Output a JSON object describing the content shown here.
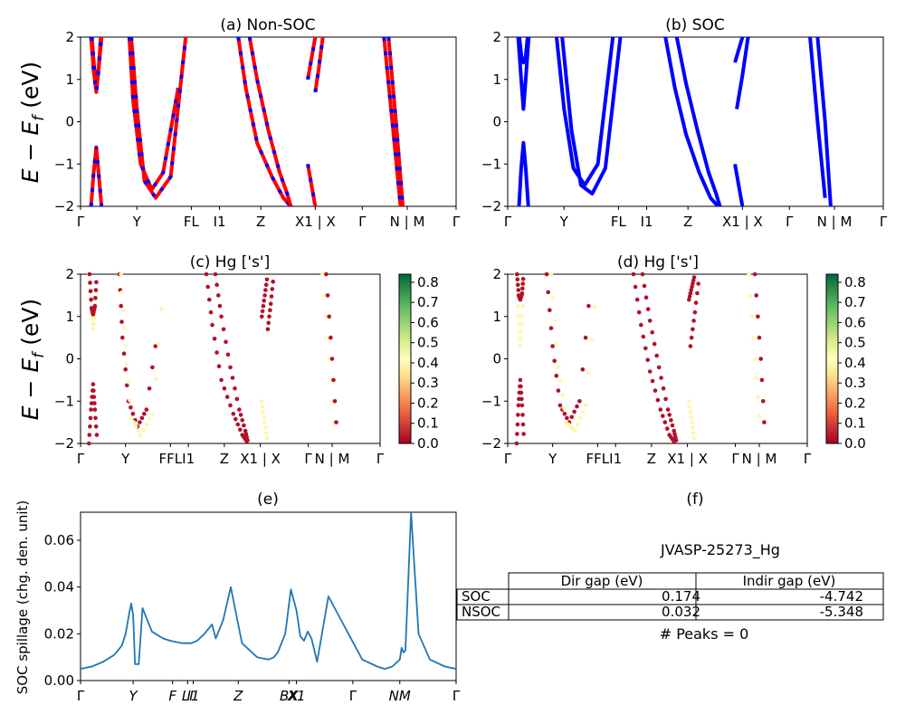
{
  "chart_data": [
    {
      "id": "a",
      "type": "line",
      "title": "(a) Non-SOC",
      "ylabel": "E − E_f (eV)",
      "ylim": [
        -2,
        2
      ],
      "yticks": [
        -2,
        -1,
        0,
        1,
        2
      ],
      "xticks": [
        "Γ",
        "Y",
        "FL",
        "I1",
        "Z",
        "X1 | X",
        "Γ",
        "N | M",
        "Γ"
      ],
      "series": [
        {
          "color": "#ff0000",
          "dashes": "#0000ff",
          "x": [
            0.28,
            0.35,
            0.42,
            0.48,
            0.56
          ],
          "y": [
            -2,
            -1.2,
            -0.6,
            -1.2,
            -2
          ]
        },
        {
          "color": "#ff0000",
          "dashes": "#0000ff",
          "x": [
            0.28,
            0.35,
            0.42,
            0.48,
            0.56
          ],
          "y": [
            2,
            1.2,
            0.7,
            1.2,
            2
          ]
        },
        {
          "color": "#ff0000",
          "dashes": "#0000ff",
          "x": [
            0.3,
            0.37,
            0.42,
            0.48,
            0.54
          ],
          "y": [
            2,
            1.2,
            1.05,
            1.25,
            2
          ]
        },
        {
          "color": "#ff0000",
          "dashes": "#0000ff",
          "x": [
            1.3,
            1.4,
            1.6,
            1.9,
            2.2,
            2.6
          ],
          "y": [
            2,
            0.5,
            -1.0,
            -1.6,
            -1.2,
            0.8
          ]
        },
        {
          "color": "#ff0000",
          "dashes": "#0000ff",
          "x": [
            1.35,
            1.5,
            1.7,
            2.0,
            2.4,
            2.8
          ],
          "y": [
            2,
            0.3,
            -1.4,
            -1.8,
            -1.3,
            2
          ]
        },
        {
          "color": "#ff0000",
          "dashes": "#0000ff",
          "x": [
            4.2,
            4.4,
            4.7,
            5.1,
            5.4,
            5.6
          ],
          "y": [
            2,
            0.8,
            -0.5,
            -1.3,
            -1.8,
            -2
          ]
        },
        {
          "color": "#ff0000",
          "dashes": "#0000ff",
          "x": [
            4.5,
            4.7,
            5.0,
            5.3,
            5.5,
            5.6
          ],
          "y": [
            2,
            1.0,
            -0.2,
            -1.2,
            -1.7,
            -2
          ]
        },
        {
          "color": "#ff0000",
          "dashes": "#0000ff",
          "x": [
            6.05,
            6.15,
            6.25
          ],
          "y": [
            -1.0,
            -1.5,
            -2
          ]
        },
        {
          "color": "#ff0000",
          "dashes": "#0000ff",
          "x": [
            6.05,
            6.15,
            6.25
          ],
          "y": [
            1.0,
            1.5,
            2
          ]
        },
        {
          "color": "#ff0000",
          "dashes": "#0000ff",
          "x": [
            6.25,
            6.35,
            6.45
          ],
          "y": [
            0.7,
            1.3,
            2
          ]
        },
        {
          "color": "#ff0000",
          "dashes": "#0000ff",
          "x": [
            8.08,
            8.3,
            8.52
          ],
          "y": [
            2,
            0,
            -2
          ]
        },
        {
          "color": "#ff0000",
          "dashes": "#0000ff",
          "x": [
            8.2,
            8.4,
            8.58
          ],
          "y": [
            2,
            0,
            -2
          ]
        }
      ]
    },
    {
      "id": "b",
      "type": "line",
      "title": "(b) SOC",
      "ylim": [
        -2,
        2
      ],
      "yticks": [
        -2,
        -1,
        0,
        1,
        2
      ],
      "xticks": [
        "Γ",
        "Y",
        "FL",
        "I1",
        "Z",
        "X1 | X",
        "Γ",
        "N | M",
        "Γ"
      ],
      "series": [
        {
          "color": "#0000ff",
          "x": [
            0.3,
            0.36,
            0.42,
            0.48,
            0.55
          ],
          "y": [
            -2,
            -1.1,
            -0.5,
            -1.1,
            -2
          ]
        },
        {
          "color": "#0000ff",
          "x": [
            0.28,
            0.36,
            0.42,
            0.48,
            0.56
          ],
          "y": [
            2,
            1.0,
            0.3,
            1.0,
            2
          ]
        },
        {
          "color": "#0000ff",
          "x": [
            0.31,
            0.37,
            0.42,
            0.48,
            0.53
          ],
          "y": [
            2,
            1.5,
            1.4,
            1.55,
            2
          ]
        },
        {
          "color": "#0000ff",
          "x": [
            1.3,
            1.5,
            1.75,
            2.05,
            2.4,
            2.8
          ],
          "y": [
            2,
            0.3,
            -1.1,
            -1.5,
            -1.0,
            2
          ]
        },
        {
          "color": "#0000ff",
          "x": [
            1.45,
            1.7,
            1.95,
            2.25,
            2.6,
            3.0
          ],
          "y": [
            2,
            -0.2,
            -1.5,
            -1.7,
            -1.1,
            2
          ]
        },
        {
          "color": "#0000ff",
          "x": [
            4.2,
            4.45,
            4.75,
            5.1,
            5.4,
            5.6
          ],
          "y": [
            2,
            0.8,
            -0.3,
            -1.2,
            -1.8,
            -2
          ]
        },
        {
          "color": "#0000ff",
          "x": [
            4.5,
            4.75,
            5.05,
            5.35,
            5.55,
            5.65
          ],
          "y": [
            2,
            0.9,
            -0.2,
            -1.2,
            -1.7,
            -2
          ]
        },
        {
          "color": "#0000ff",
          "x": [
            6.05,
            6.15,
            6.25
          ],
          "y": [
            -1.0,
            -1.5,
            -2
          ]
        },
        {
          "color": "#0000ff",
          "x": [
            6.05,
            6.15,
            6.25
          ],
          "y": [
            1.4,
            1.7,
            2
          ]
        },
        {
          "color": "#0000ff",
          "x": [
            6.1,
            6.25,
            6.4
          ],
          "y": [
            0.3,
            1.1,
            2
          ]
        },
        {
          "color": "#0000ff",
          "x": [
            8.05,
            8.25,
            8.45
          ],
          "y": [
            2,
            0,
            -1.8
          ]
        },
        {
          "color": "#0000ff",
          "x": [
            8.25,
            8.45,
            8.6
          ],
          "y": [
            2,
            0,
            -2
          ]
        }
      ]
    },
    {
      "id": "c",
      "type": "scatter",
      "title": "(c)  Hg ['s']",
      "ylabel": "E − E_f (eV)",
      "ylim": [
        -2,
        2
      ],
      "yticks": [
        -2,
        -1,
        0,
        1,
        2
      ],
      "xticks": [
        "Γ",
        "Y",
        "FFL",
        "I1",
        "Z",
        "X1 | X",
        "Γ",
        "N | M",
        "Γ"
      ],
      "colorbar": {
        "min": 0.0,
        "max": 0.84,
        "ticks": [
          "0.0",
          "0.1",
          "0.2",
          "0.3",
          "0.4",
          "0.5",
          "0.6",
          "0.7",
          "0.8"
        ]
      }
    },
    {
      "id": "d",
      "type": "scatter",
      "title": "(d) Hg ['s']",
      "ylim": [
        -2,
        2
      ],
      "yticks": [
        -2,
        -1,
        0,
        1,
        2
      ],
      "xticks": [
        "Γ",
        "Y",
        "FFL",
        "I1",
        "Z",
        "X1 | X",
        "Γ",
        "N | M",
        "Γ"
      ],
      "colorbar": {
        "min": 0.0,
        "max": 0.84,
        "ticks": [
          "0.0",
          "0.1",
          "0.2",
          "0.3",
          "0.4",
          "0.5",
          "0.6",
          "0.7",
          "0.8"
        ]
      }
    },
    {
      "id": "e",
      "type": "line",
      "title": "(e)",
      "ylabel": "SOC spillage (chg. den. unit)",
      "ylim": [
        0,
        0.072
      ],
      "yticks": [
        "0.00",
        "0.02",
        "0.04",
        "0.06"
      ],
      "xticks": [
        "Γ",
        "Y",
        "F",
        "LI",
        "I1",
        "Z",
        "BX",
        "X1",
        "Γ",
        "NM",
        "Γ"
      ],
      "series": [
        {
          "color": "#1f77b4",
          "x": [
            0,
            0.3,
            0.6,
            0.9,
            1.1,
            1.2,
            1.3,
            1.35,
            1.4,
            1.45,
            1.55,
            1.65,
            1.9,
            2.2,
            2.4,
            2.7,
            2.95,
            3.1,
            3.3,
            3.5,
            3.6,
            3.8,
            4.0,
            4.3,
            4.7,
            5.0,
            5.15,
            5.25,
            5.45,
            5.6,
            5.75,
            5.85,
            5.95,
            6.05,
            6.15,
            6.3,
            6.6,
            7.0,
            7.5,
            7.9,
            8.1,
            8.3,
            8.5,
            8.55,
            8.6,
            8.65,
            8.8,
            9.0,
            9.3,
            9.7,
            10.0
          ],
          "y": [
            0.005,
            0.006,
            0.008,
            0.011,
            0.015,
            0.02,
            0.029,
            0.033,
            0.028,
            0.007,
            0.007,
            0.031,
            0.021,
            0.018,
            0.017,
            0.016,
            0.016,
            0.017,
            0.02,
            0.024,
            0.018,
            0.026,
            0.04,
            0.016,
            0.01,
            0.009,
            0.01,
            0.012,
            0.02,
            0.039,
            0.03,
            0.019,
            0.017,
            0.021,
            0.018,
            0.008,
            0.036,
            0.024,
            0.009,
            0.006,
            0.005,
            0.006,
            0.009,
            0.014,
            0.012,
            0.013,
            0.072,
            0.02,
            0.009,
            0.006,
            0.005
          ]
        }
      ]
    }
  ],
  "panel_f": {
    "title": "(f)",
    "material": "JVASP-25273_Hg",
    "table": {
      "headers": [
        "Dir gap (eV)",
        "Indir gap (eV)"
      ],
      "rows": [
        {
          "label": "SOC",
          "dir": "0.174",
          "indir": "-4.742"
        },
        {
          "label": "NSOC",
          "dir": "0.032",
          "indir": "-5.348"
        }
      ]
    },
    "peaks": "# Peaks = 0"
  }
}
